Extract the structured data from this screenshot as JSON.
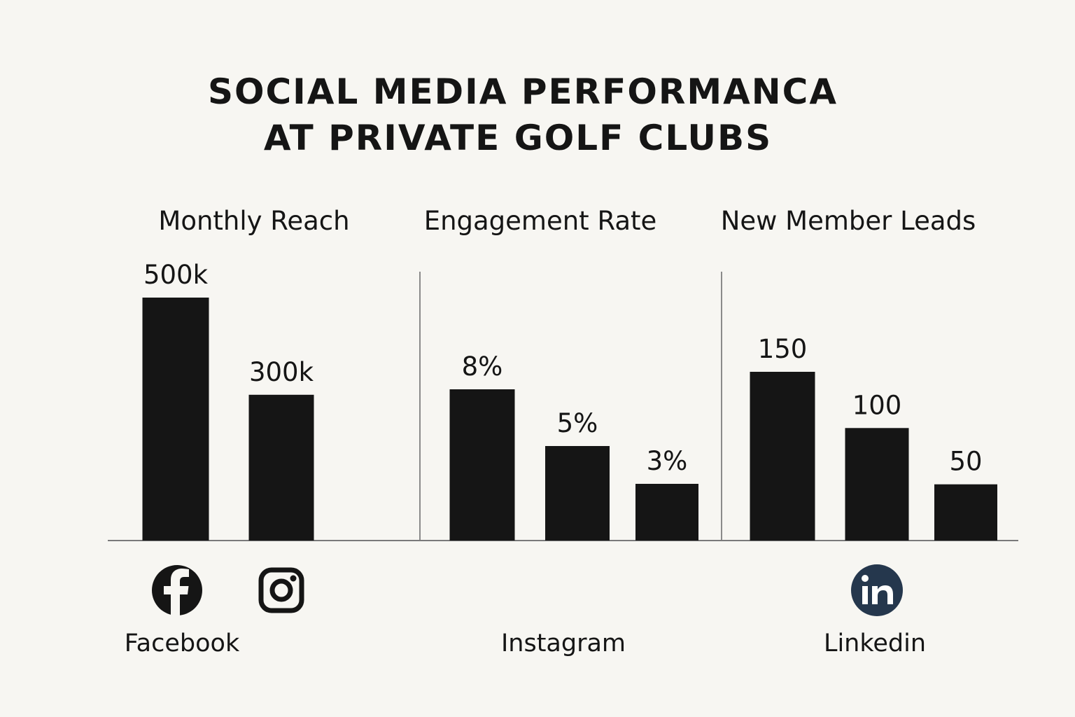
{
  "title_lines": [
    "SOCIAL MEDIA PERFORMANCA",
    "AT PRIVATE GOLF CLUBS"
  ],
  "colors": {
    "bar": "#151515",
    "axis": "#7a7a7a",
    "background": "#f7f6f2",
    "linkedin": "#25374d"
  },
  "chart_data": [
    {
      "type": "bar",
      "title": "Monthly Reach",
      "value_labels": [
        "500k",
        "300k"
      ],
      "values": [
        500,
        300
      ],
      "unit": "k"
    },
    {
      "type": "bar",
      "title": "Engagement Rate",
      "value_labels": [
        "8%",
        "5%",
        "3%"
      ],
      "values": [
        8,
        5,
        3
      ],
      "unit": "%"
    },
    {
      "type": "bar",
      "title": "New Member Leads",
      "value_labels": [
        "150",
        "100",
        "50"
      ],
      "values": [
        150,
        100,
        50
      ]
    }
  ],
  "platforms": [
    {
      "label": "Facebook",
      "icon": "facebook-icon"
    },
    {
      "label": "Instagram",
      "icon": "instagram-icon"
    },
    {
      "label": "Linkedin",
      "icon": "linkedin-icon"
    }
  ]
}
